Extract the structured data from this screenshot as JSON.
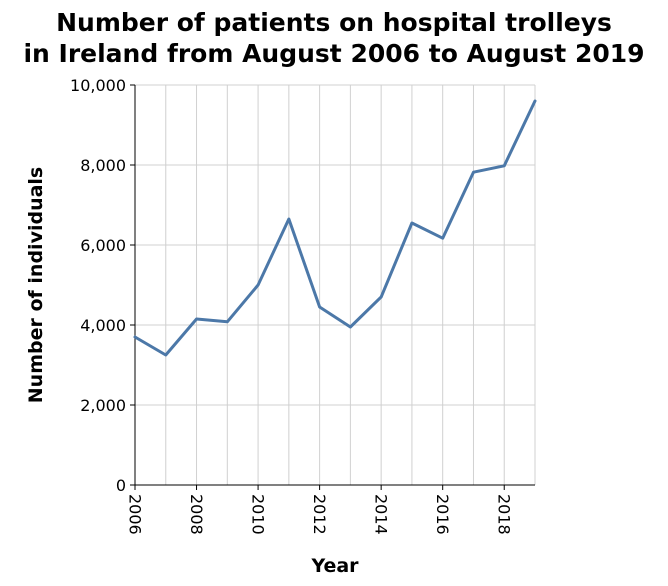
{
  "chart_data": {
    "type": "line",
    "title_lines": [
      "Number of patients on hospital trolleys",
      "in Ireland from August 2006 to August 2019"
    ],
    "xlabel": "Year",
    "ylabel": "Number of individuals",
    "x": [
      2006,
      2007,
      2008,
      2009,
      2010,
      2011,
      2012,
      2013,
      2014,
      2015,
      2016,
      2017,
      2018,
      2019
    ],
    "series": [
      {
        "values": [
          3700,
          3250,
          4150,
          4080,
          5000,
          6650,
          4450,
          3950,
          4700,
          6550,
          6170,
          7820,
          7980,
          9600
        ],
        "color": "#4c78a8"
      }
    ],
    "xlim": [
      2006,
      2019
    ],
    "ylim": [
      0,
      10000
    ],
    "x_ticks": [
      "2006",
      "2008",
      "2010",
      "2012",
      "2014",
      "2016",
      "2018"
    ],
    "x_tick_values": [
      2006,
      2008,
      2010,
      2012,
      2014,
      2016,
      2018
    ],
    "y_ticks": [
      "0",
      "2,000",
      "4,000",
      "6,000",
      "8,000",
      "10,000"
    ],
    "y_tick_values": [
      0,
      2000,
      4000,
      6000,
      8000,
      10000
    ],
    "grid": true
  }
}
